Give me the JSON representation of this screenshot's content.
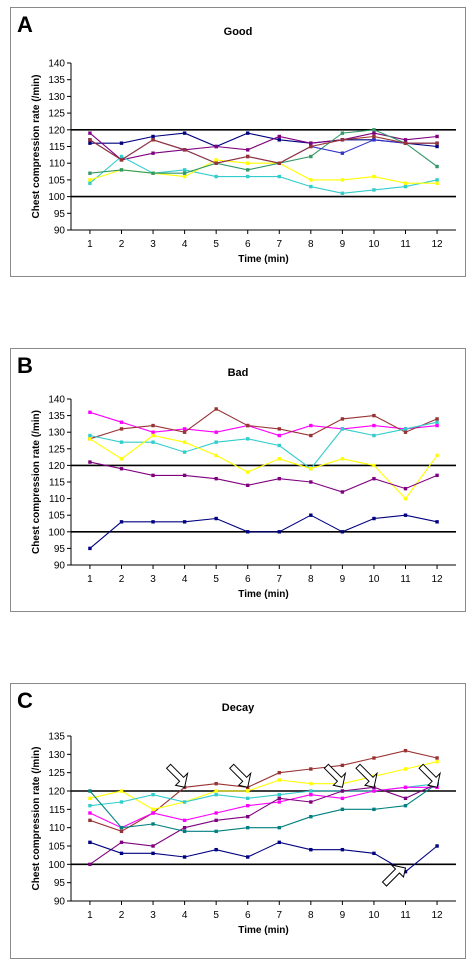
{
  "chart_data": [
    {
      "type": "line",
      "panel_letter": "A",
      "title": "Good",
      "xlabel": "Time (min)",
      "ylabel": "Chest compression rate (/min)",
      "ylim": [
        90,
        140
      ],
      "ytick_step": 5,
      "x": [
        1,
        2,
        3,
        4,
        5,
        6,
        7,
        8,
        9,
        10,
        11,
        12
      ],
      "reference_lines": [
        100,
        120
      ],
      "legend": "none",
      "grid": false,
      "series": [
        {
          "color": "#000080",
          "values": [
            116,
            116,
            118,
            119,
            115,
            119,
            117,
            116,
            117,
            117,
            116,
            115
          ]
        },
        {
          "color": "#800080",
          "values": [
            119,
            111,
            113,
            114,
            115,
            114,
            118,
            116,
            117,
            119,
            117,
            118
          ]
        },
        {
          "color": "#33CCCC",
          "values": [
            104,
            112,
            107,
            108,
            106,
            106,
            106,
            103,
            101,
            102,
            103,
            105
          ]
        },
        {
          "color": "#FFFF00",
          "values": [
            105,
            108,
            107,
            106,
            111,
            110,
            110,
            105,
            105,
            106,
            104,
            104
          ]
        },
        {
          "color": "#339966",
          "values": [
            107,
            108,
            107,
            107,
            110,
            108,
            110,
            112,
            119,
            120,
            116,
            109
          ]
        },
        {
          "color": "#3333CC",
          "values": [
            117,
            111,
            117,
            114,
            110,
            112,
            110,
            115,
            113,
            117,
            116,
            116
          ]
        },
        {
          "color": "#993333",
          "values": [
            117,
            111,
            117,
            114,
            110,
            112,
            110,
            115,
            117,
            118,
            116,
            116
          ]
        }
      ]
    },
    {
      "type": "line",
      "panel_letter": "B",
      "title": "Bad",
      "xlabel": "Time (min)",
      "ylabel": "Chest compression rate (/min)",
      "ylim": [
        90,
        140
      ],
      "ytick_step": 5,
      "x": [
        1,
        2,
        3,
        4,
        5,
        6,
        7,
        8,
        9,
        10,
        11,
        12
      ],
      "reference_lines": [
        100,
        120
      ],
      "legend": "none",
      "grid": false,
      "series": [
        {
          "color": "#FF00FF",
          "values": [
            136,
            133,
            130,
            131,
            130,
            132,
            129,
            132,
            131,
            132,
            131,
            132
          ]
        },
        {
          "color": "#993333",
          "values": [
            128,
            131,
            132,
            130,
            137,
            132,
            131,
            129,
            134,
            135,
            130,
            134
          ]
        },
        {
          "color": "#33CCCC",
          "values": [
            129,
            127,
            127,
            124,
            127,
            128,
            126,
            119,
            131,
            129,
            131,
            133
          ]
        },
        {
          "color": "#FFFF00",
          "values": [
            128,
            122,
            129,
            127,
            123,
            118,
            122,
            119,
            122,
            120,
            110,
            123
          ]
        },
        {
          "color": "#800080",
          "values": [
            121,
            119,
            117,
            117,
            116,
            114,
            116,
            115,
            112,
            116,
            113,
            117
          ]
        },
        {
          "color": "#000080",
          "values": [
            95,
            103,
            103,
            103,
            104,
            100,
            100,
            105,
            100,
            104,
            105,
            103
          ]
        }
      ]
    },
    {
      "type": "line",
      "panel_letter": "C",
      "title": "Decay",
      "xlabel": "Time (min)",
      "ylabel": "Chest compression rate (/min)",
      "ylim": [
        90,
        135
      ],
      "ytick_step": 5,
      "x": [
        1,
        2,
        3,
        4,
        5,
        6,
        7,
        8,
        9,
        10,
        11,
        12
      ],
      "reference_lines": [
        100,
        120
      ],
      "legend": "none",
      "grid": false,
      "series": [
        {
          "color": "#993333",
          "values": [
            112,
            109,
            114,
            121,
            122,
            121,
            125,
            126,
            127,
            129,
            131,
            129
          ]
        },
        {
          "color": "#FFFF00",
          "values": [
            118,
            120,
            115,
            117,
            120,
            120,
            123,
            122,
            122,
            124,
            126,
            128
          ]
        },
        {
          "color": "#33CCCC",
          "values": [
            116,
            117,
            119,
            117,
            119,
            118,
            119,
            120,
            120,
            120,
            121,
            122
          ]
        },
        {
          "color": "#FF00FF",
          "values": [
            114,
            110,
            114,
            112,
            114,
            116,
            117,
            119,
            118,
            120,
            121,
            121
          ]
        },
        {
          "color": "#800080",
          "values": [
            100,
            106,
            105,
            110,
            112,
            113,
            118,
            117,
            120,
            121,
            118,
            122
          ]
        },
        {
          "color": "#008080",
          "values": [
            120,
            110,
            111,
            109,
            109,
            110,
            110,
            113,
            115,
            115,
            116,
            122
          ]
        },
        {
          "color": "#000080",
          "values": [
            106,
            103,
            103,
            102,
            104,
            102,
            106,
            104,
            104,
            103,
            98,
            105
          ]
        }
      ],
      "annotation_arrows": [
        {
          "x": 4,
          "y": 121,
          "direction": "down-left"
        },
        {
          "x": 6,
          "y": 121,
          "direction": "down-left"
        },
        {
          "x": 9,
          "y": 121,
          "direction": "down-left"
        },
        {
          "x": 10,
          "y": 121,
          "direction": "down-left"
        },
        {
          "x": 12,
          "y": 121,
          "direction": "down-left"
        },
        {
          "x": 11,
          "y": 99,
          "direction": "up-left"
        }
      ]
    }
  ]
}
